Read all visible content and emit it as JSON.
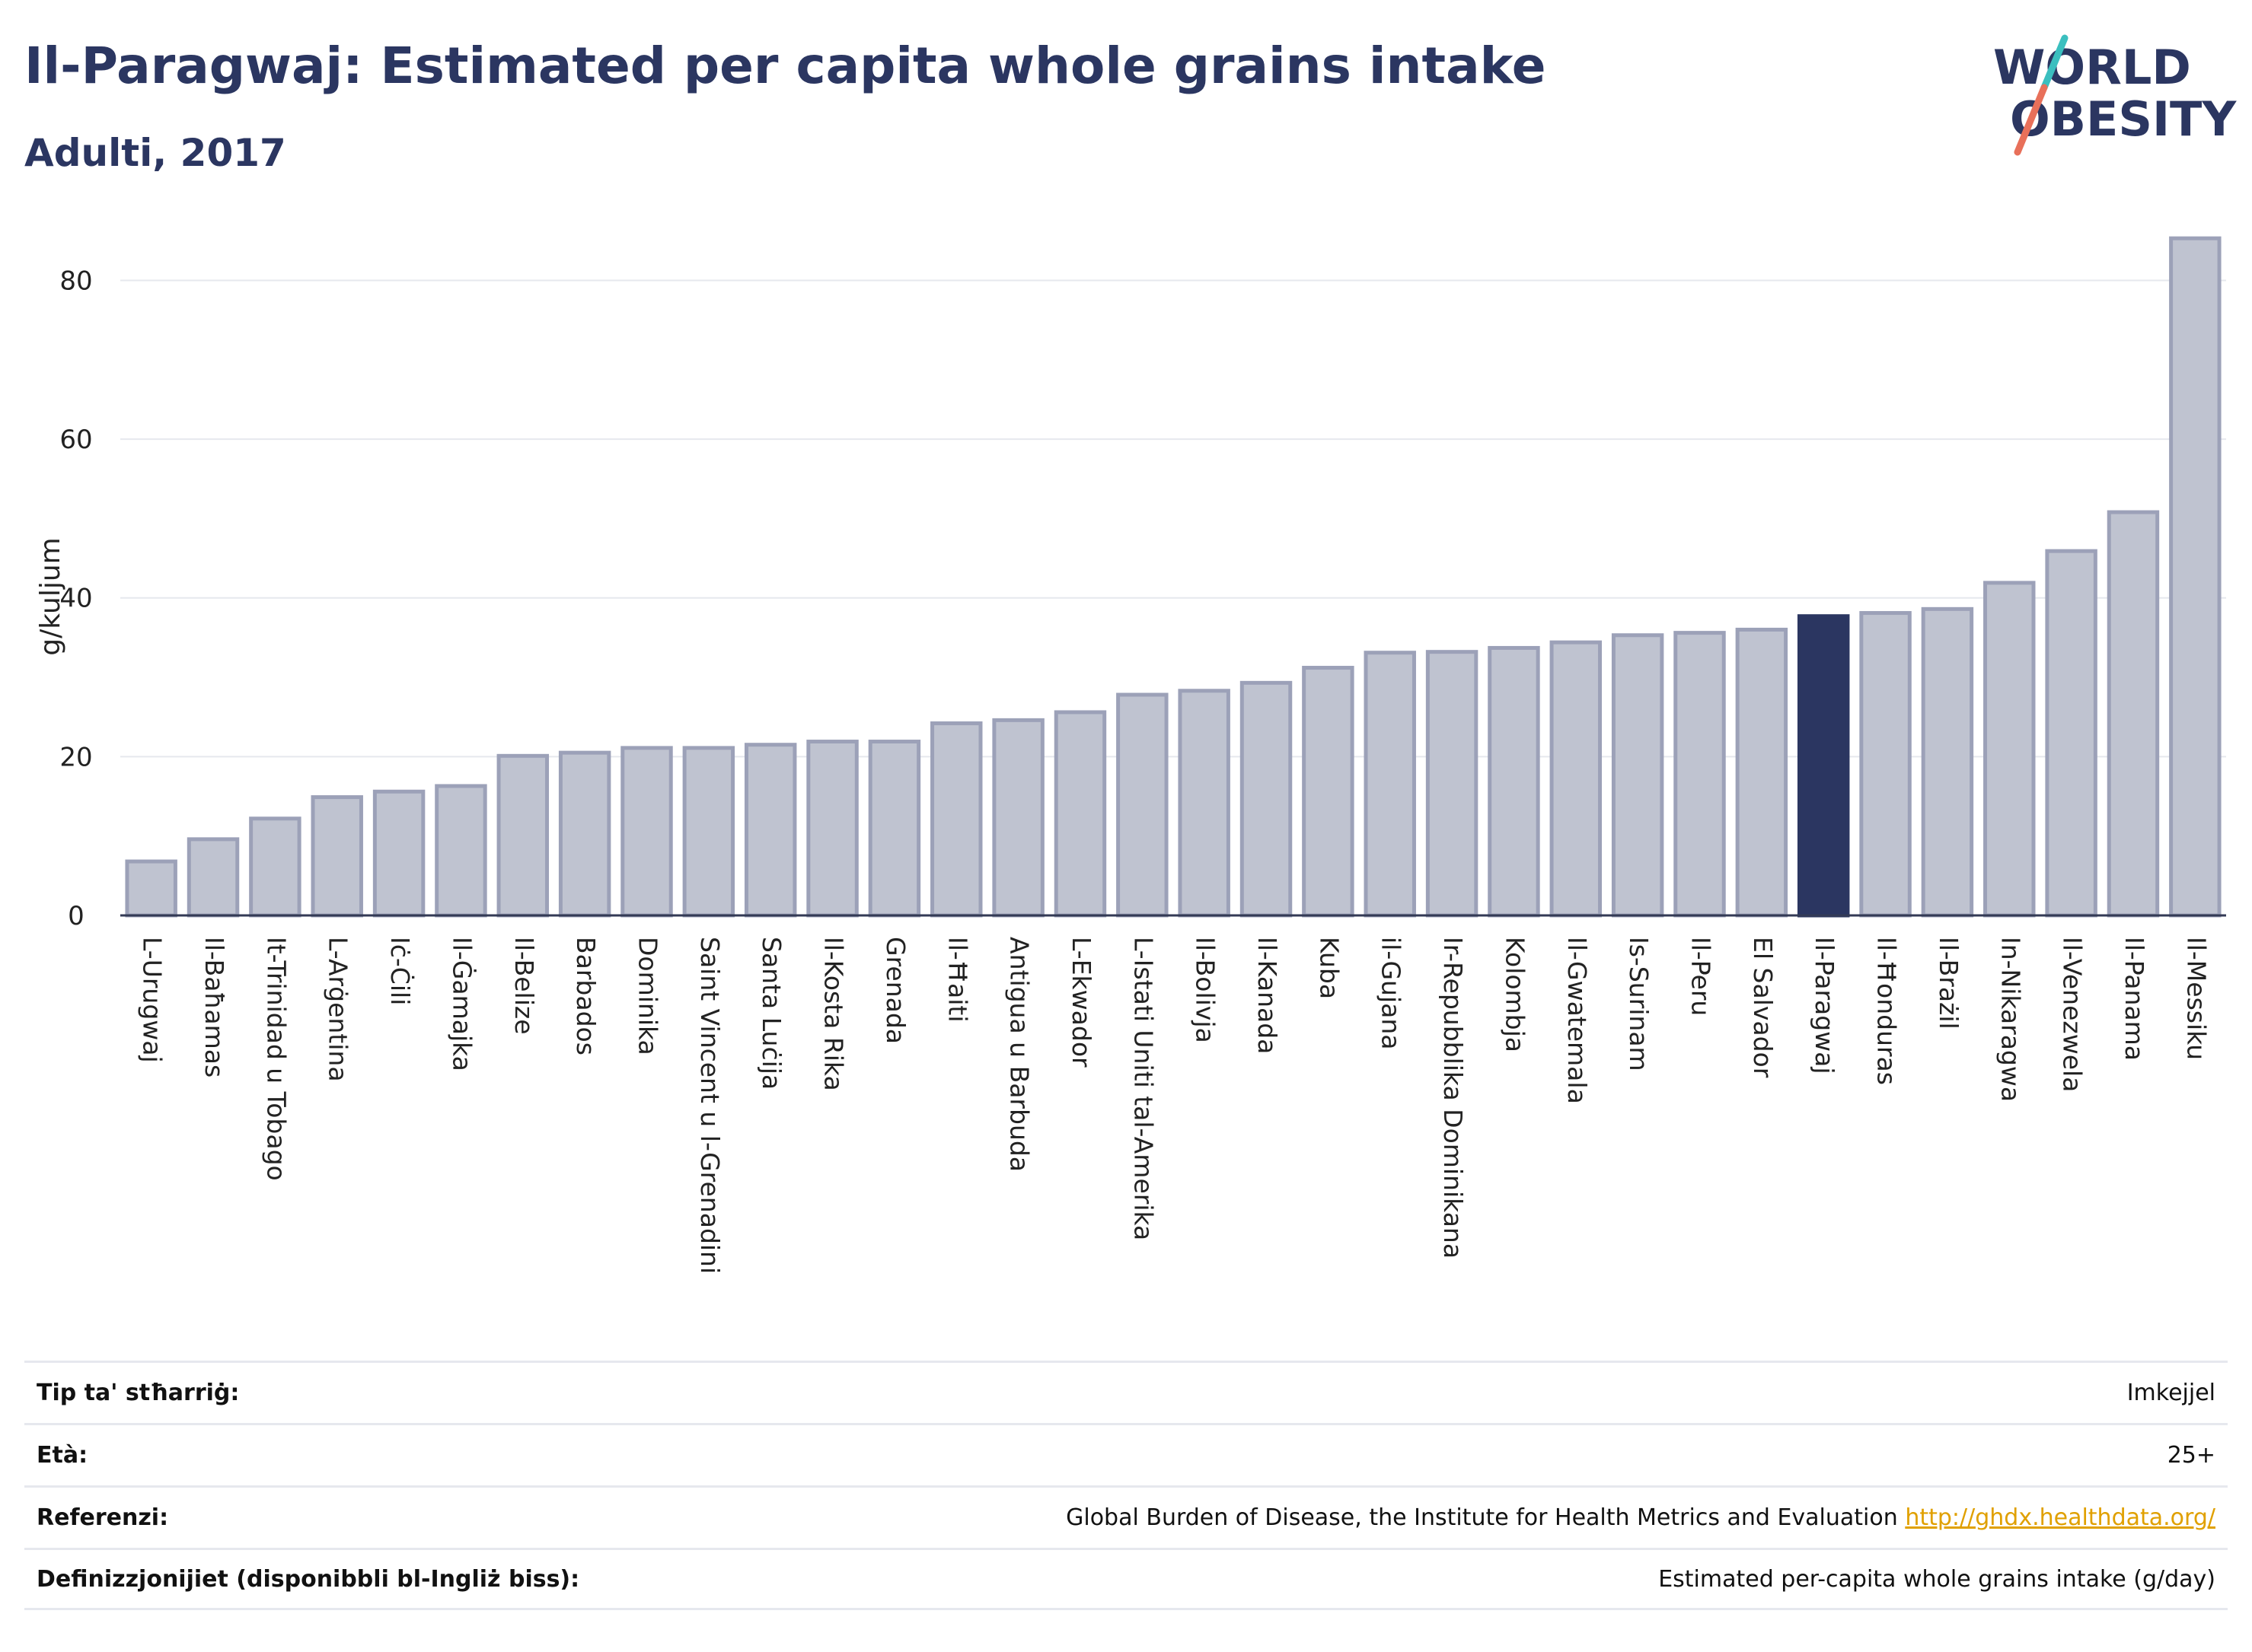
{
  "title": "Il-Paragwaj: Estimated per capita whole grains intake",
  "subtitle": "Adulti, 2017",
  "logo": {
    "line1": "WORLD",
    "line2": "OBESITY"
  },
  "colors": {
    "highlight": "#2b3661",
    "bar": "#bfc3d0",
    "bar_border": "#9ca1b8",
    "accent_teal": "#3bbfbf",
    "accent_coral": "#e8705a"
  },
  "chart_data": {
    "type": "bar",
    "ylabel": "g/kuljum",
    "ylim": [
      0,
      88
    ],
    "yticks": [
      0,
      20,
      40,
      60,
      80
    ],
    "grid": true,
    "highlight": "Il-Paragwaj",
    "categories": [
      "L-Urugwaj",
      "Il-Baħamas",
      "It-Trinidad u Tobago",
      "L-Arġentina",
      "Iċ-Ċili",
      "Il-Ġamajka",
      "Il-Belize",
      "Barbados",
      "Dominika",
      "Saint Vincent u l-Grenadini",
      "Santa Luċija",
      "Il-Kosta Rika",
      "Grenada",
      "Il-Ħaiti",
      "Antigua u Barbuda",
      "L-Ekwador",
      "L-Istati Uniti tal-Amerika",
      "Il-Bolivja",
      "Il-Kanada",
      "Kuba",
      "il-Gujana",
      "Ir-Repubblika Dominikana",
      "Kolombja",
      "Il-Gwatemala",
      "Is-Surinam",
      "Il-Peru",
      "El Salvador",
      "Il-Paragwaj",
      "Il-Ħonduras",
      "Il-Brażil",
      "In-Nikaragwa",
      "Il-Venezwela",
      "Il-Panama",
      "Il-Messiku"
    ],
    "values": [
      6.8,
      9.6,
      12.2,
      14.9,
      15.6,
      16.3,
      20.1,
      20.5,
      21.1,
      21.1,
      21.5,
      21.9,
      21.9,
      24.2,
      24.6,
      25.6,
      27.8,
      28.3,
      29.3,
      31.2,
      33.1,
      33.2,
      33.7,
      34.4,
      35.3,
      35.6,
      36.0,
      37.7,
      38.1,
      38.6,
      41.9,
      45.9,
      50.8,
      85.3
    ]
  },
  "meta": [
    {
      "key": "Tip ta' stħarriġ:",
      "value": "Imkejjel"
    },
    {
      "key": "Età:",
      "value": "25+"
    },
    {
      "key": "Referenzi:",
      "value": "Global Burden of Disease, the Institute for Health Metrics and Evaluation",
      "link": "http://ghdx.healthdata.org/"
    },
    {
      "key": "Definizzjonijiet (disponibbli bl-Ingliż biss):",
      "value": "Estimated per-capita whole grains intake (g/day)"
    }
  ]
}
